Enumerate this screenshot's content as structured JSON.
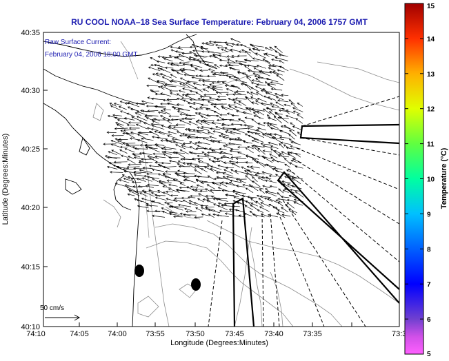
{
  "title": "RU COOL  NOAA–18  Sea Surface Temperature:  February 04, 2006 1757 GMT",
  "annotation": {
    "line1": "Raw Surface Current:",
    "line2": "February 04, 2006 18:00 GMT"
  },
  "axes": {
    "xlabel": "Longitude (Degrees:Minutes)",
    "ylabel": "Latitude (Degrees:Minutes)",
    "xticks": [
      "74:10",
      "74:05",
      "74:00",
      "73:55",
      "73:50",
      "73:45",
      "73:40",
      "73:35",
      "73:3"
    ],
    "yticks": [
      "40:35",
      "40:30",
      "40:25",
      "40:20",
      "40:15",
      "40:10"
    ]
  },
  "scale_label": "50 cm/s",
  "colorbar": {
    "label": "Temperature (°C)",
    "ticks": [
      "15",
      "14",
      "13",
      "12",
      "11",
      "10",
      "9",
      "8",
      "7",
      "6",
      "5"
    ],
    "min": 5,
    "max": 15
  },
  "colors": {
    "title": "#1c1cb0",
    "annotation": "#1c1cb0",
    "axis": "#000000",
    "bathymetry": "#8c8c8c"
  }
}
